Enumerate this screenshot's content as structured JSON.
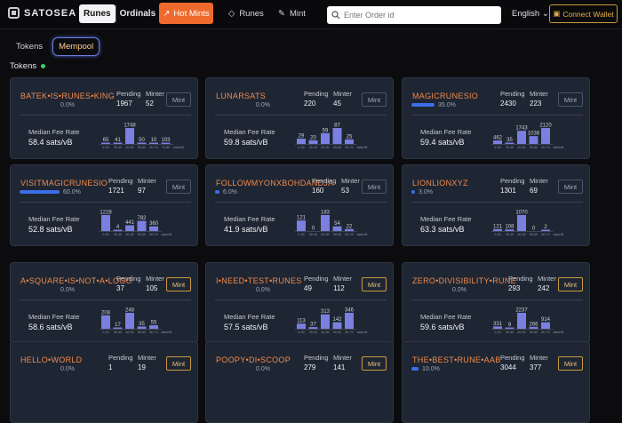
{
  "app": {
    "name": "SATOSEA"
  },
  "header": {
    "toggle": [
      "Runes",
      "Ordinals"
    ],
    "hot_mints": "Hot Mints",
    "nav_runes": "Runes",
    "nav_mint": "Mint",
    "search_placeholder": "Enter Order id",
    "language": "English",
    "connect_wallet": "Connect Wallet"
  },
  "tabs": [
    "Tokens",
    "Mempool"
  ],
  "section_title": "Tokens",
  "labels": {
    "pending": "Pending",
    "minter": "Minter",
    "mint": "Mint",
    "median": "Median Fee Rate",
    "bucket_labels": [
      "0-30",
      "30-40",
      "40-50",
      "50-60",
      "60-70",
      "70-80"
    ],
    "unit": "sats/vB"
  },
  "colors": {
    "accent": "#ef6a2c",
    "name": "#f08a4b",
    "bar": "#7a7fe0",
    "progress": "#3b6ee8"
  },
  "cards": [
    {
      "name": "BATEK•IS•RUNES•KING",
      "progress": "0.0%",
      "pending": "1967",
      "minter": "52",
      "fee": "58.4 sats/vB",
      "mint_active": false,
      "hist": [
        65,
        41,
        1748,
        50,
        10,
        103
      ]
    },
    {
      "name": "LUNARSATS",
      "progress": "0.0%",
      "pending": "220",
      "minter": "45",
      "fee": "59.8 sats/vB",
      "mint_active": false,
      "hist": [
        29,
        20,
        59,
        87,
        25,
        null
      ]
    },
    {
      "name": "MAGICRUNESIO",
      "progress": "35.0%",
      "progress_value": 0.35,
      "pending": "2430",
      "minter": "223",
      "fee": "59.4 sats/vB",
      "mint_active": false,
      "hist": [
        462,
        35,
        1743,
        1038,
        2120,
        null
      ]
    },
    {
      "name": "VISITMAGICRUNESIO",
      "progress": "60.0%",
      "progress_value": 0.6,
      "pending": "1721",
      "minter": "97",
      "fee": "52.8 sats/vB",
      "mint_active": false,
      "hist": [
        1228,
        4,
        441,
        782,
        360,
        null
      ]
    },
    {
      "name": "FOLLOWMYONXBOHDANDJA",
      "progress": "6.0%",
      "progress_value": 0.06,
      "pending": "160",
      "minter": "53",
      "fee": "41.9 sats/vB",
      "mint_active": false,
      "hist": [
        121,
        0,
        183,
        54,
        22,
        null
      ]
    },
    {
      "name": "LIONLIONXYZ",
      "progress": "3.0%",
      "progress_value": 0.03,
      "pending": "1301",
      "minter": "69",
      "fee": "63.3 sats/vB",
      "mint_active": false,
      "hist": [
        121,
        108,
        1070,
        0,
        2,
        null
      ]
    },
    {
      "name": "A•SQUARE•IS•NOT•A•LOGO",
      "progress": "0.0%",
      "pending": "37",
      "minter": "105",
      "fee": "58.6 sats/vB",
      "mint_active": true,
      "hist": [
        208,
        17,
        248,
        35,
        55,
        null
      ]
    },
    {
      "name": "I•NEED•TEST•RUNES",
      "progress": "0.0%",
      "pending": "49",
      "minter": "112",
      "fee": "57.5 sats/vB",
      "mint_active": true,
      "hist": [
        113,
        37,
        313,
        142,
        346,
        null
      ]
    },
    {
      "name": "ZERO•DIVISIBILITY•RUNE",
      "progress": "0.0%",
      "pending": "293",
      "minter": "242",
      "fee": "59.6 sats/vB",
      "mint_active": true,
      "hist": [
        331,
        9,
        2237,
        266,
        914,
        null
      ]
    },
    {
      "name": "HELLO•WORLD",
      "progress": "0.0%",
      "pending": "1",
      "minter": "19",
      "mint_active": true
    },
    {
      "name": "POOPY•DI•SCOOP",
      "progress": "0.0%",
      "pending": "279",
      "minter": "141",
      "mint_active": true
    },
    {
      "name": "THE•BEST•RUNE•AAB",
      "progress": "10.0%",
      "progress_value": 0.1,
      "pending": "3044",
      "minter": "377",
      "mint_active": true
    }
  ]
}
